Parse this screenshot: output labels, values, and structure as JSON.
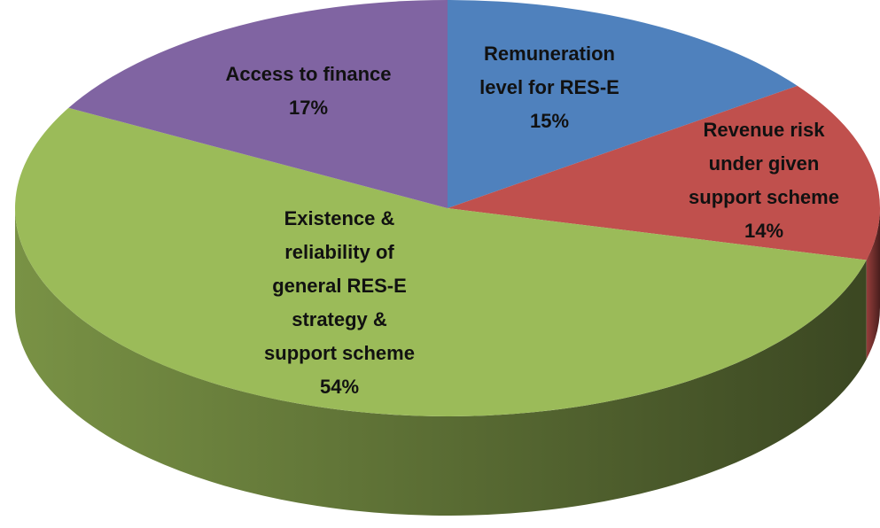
{
  "chart_data": {
    "type": "pie",
    "categories": [
      "Remuneration level for RES-E",
      "Revenue risk under given support scheme",
      "Existence & reliability of general RES-E strategy & support scheme",
      "Access to finance"
    ],
    "values": [
      15,
      14,
      54,
      17
    ],
    "value_labels": [
      "15%",
      "14%",
      "54%",
      "17%"
    ],
    "colors": [
      "#4f81bd",
      "#c0504d",
      "#9bbb59",
      "#8064a2"
    ]
  }
}
